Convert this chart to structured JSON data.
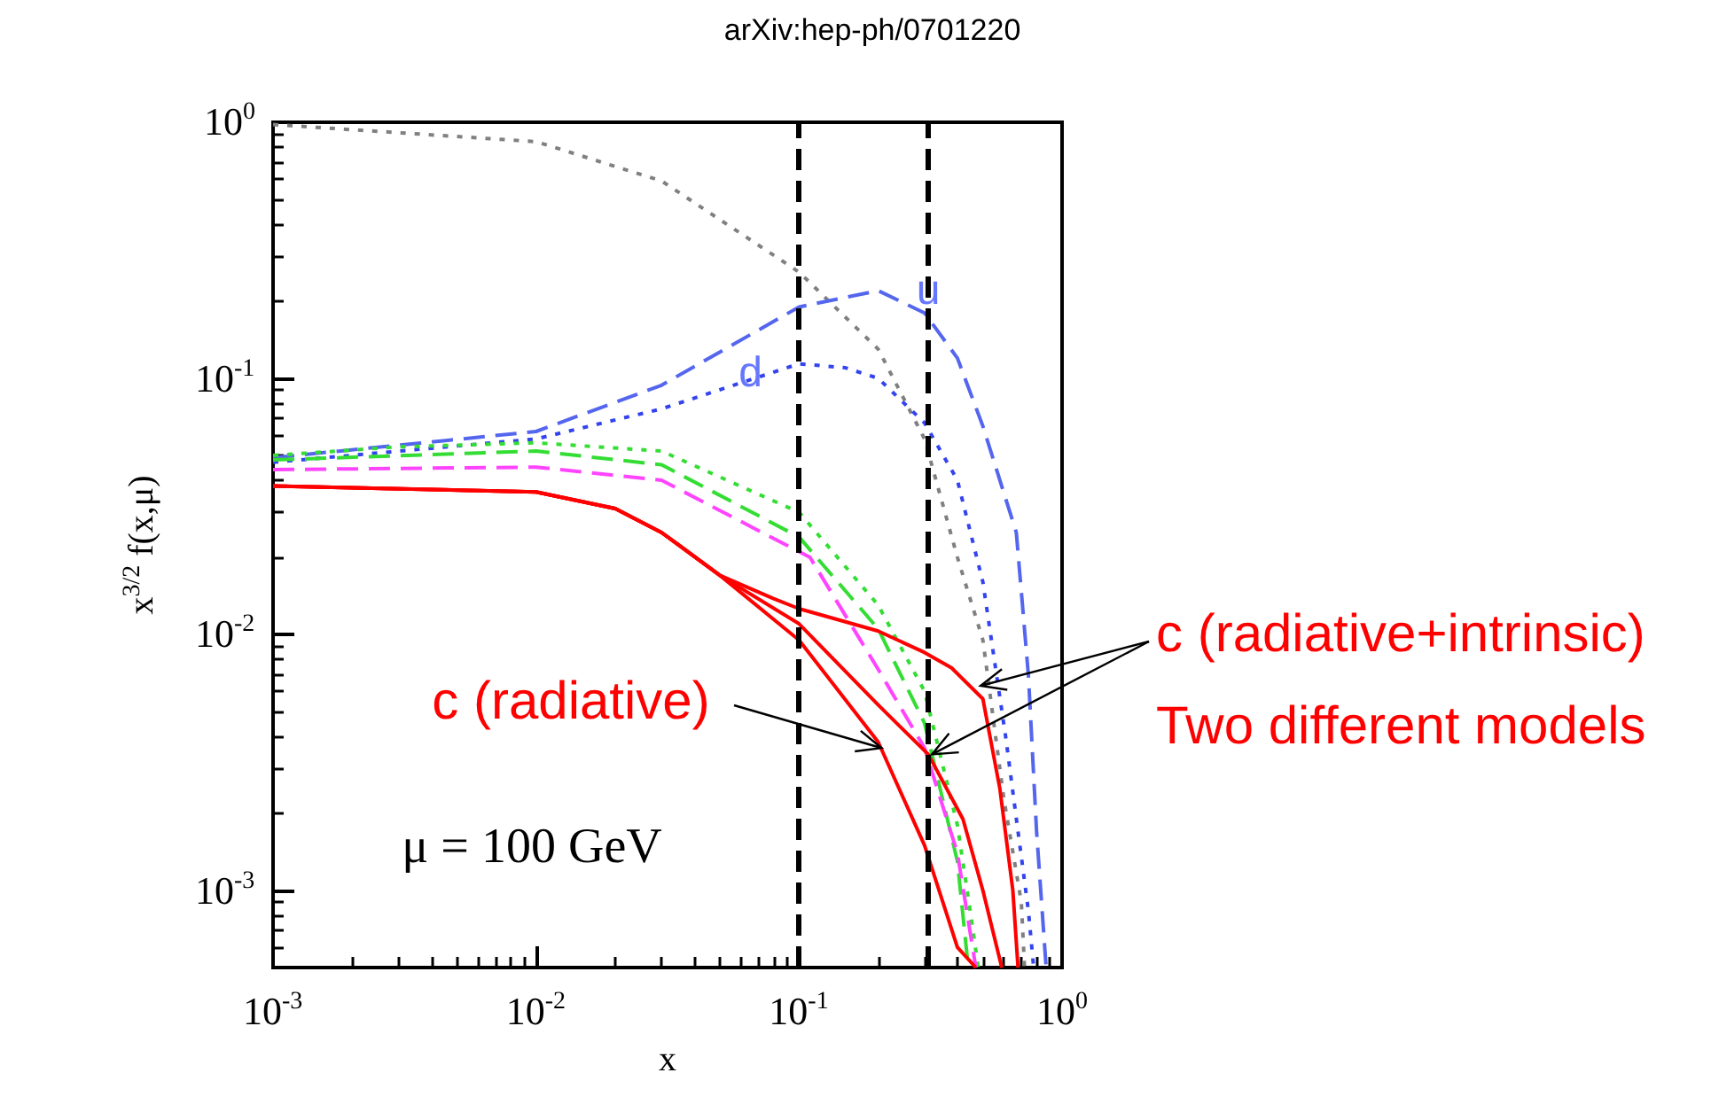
{
  "chart_data": {
    "type": "line",
    "xlabel": "x",
    "ylabel": "x$^{3/2}$ f(x,μ)",
    "log": "xy",
    "grid": false,
    "marker": "none",
    "xlim": [
      0.001,
      1
    ],
    "ylim": [
      0.0005,
      1
    ],
    "xticks": [
      {
        "value": 0.001,
        "label": "10$^{-3}$"
      },
      {
        "value": 0.01,
        "label": "10$^{-2}$"
      },
      {
        "value": 0.1,
        "label": "10$^{-1}$"
      },
      {
        "value": 1,
        "label": "10$^{0}$"
      }
    ],
    "yticks": [
      {
        "value": 0.001,
        "label": "10$^{-3}$"
      },
      {
        "value": 0.01,
        "label": "10$^{-2}$"
      },
      {
        "value": 0.1,
        "label": "10$^{-1}$"
      },
      {
        "value": 1,
        "label": "10$^{0}$"
      }
    ],
    "series": [
      {
        "color": "#808080",
        "line_style": "dotted",
        "x": [
          0.001,
          0.01,
          0.03,
          0.1,
          0.2,
          0.3,
          0.4,
          0.5,
          0.6,
          0.7,
          0.72
        ],
        "values": [
          0.98,
          0.84,
          0.59,
          0.26,
          0.13,
          0.058,
          0.02,
          0.0095,
          0.0023,
          0.0009,
          0.0005
        ]
      },
      {
        "color": "#5566ee",
        "line_style": "dashed",
        "x": [
          0.001,
          0.01,
          0.03,
          0.1,
          0.2,
          0.3,
          0.4,
          0.5,
          0.67,
          0.745,
          0.8,
          0.87
        ],
        "values": [
          0.049,
          0.062,
          0.094,
          0.19,
          0.22,
          0.18,
          0.12,
          0.065,
          0.025,
          0.0069,
          0.0017,
          0.0005
        ]
      },
      {
        "color": "#3344ee",
        "line_style": "dotted",
        "x": [
          0.001,
          0.01,
          0.03,
          0.1,
          0.15,
          0.2,
          0.3,
          0.4,
          0.5,
          0.61,
          0.745,
          0.78
        ],
        "values": [
          0.047,
          0.058,
          0.076,
          0.114,
          0.11,
          0.1,
          0.067,
          0.04,
          0.016,
          0.004,
          0.00083,
          0.0005
        ]
      },
      {
        "color": "#33dd33",
        "line_style": "dotted",
        "x": [
          0.001,
          0.003,
          0.01,
          0.03,
          0.1,
          0.2,
          0.3,
          0.4,
          0.45,
          0.48
        ],
        "values": [
          0.05,
          0.054,
          0.056,
          0.052,
          0.03,
          0.013,
          0.006,
          0.0018,
          0.0008,
          0.0005
        ]
      },
      {
        "color": "#33dd33",
        "line_style": "dashed",
        "x": [
          0.001,
          0.01,
          0.03,
          0.1,
          0.2,
          0.3,
          0.4,
          0.44
        ],
        "values": [
          0.048,
          0.052,
          0.046,
          0.024,
          0.0105,
          0.0045,
          0.0013,
          0.0005
        ]
      },
      {
        "color": "#ff44ff",
        "line_style": "dashed",
        "x": [
          0.001,
          0.01,
          0.03,
          0.11,
          0.2,
          0.3,
          0.4,
          0.47
        ],
        "values": [
          0.044,
          0.045,
          0.04,
          0.02,
          0.0073,
          0.0036,
          0.0014,
          0.0005
        ]
      },
      {
        "color": "#ff0000",
        "line_style": "solid",
        "x": [
          0.001,
          0.01,
          0.02,
          0.03,
          0.05,
          0.1,
          0.2,
          0.3,
          0.4,
          0.47
        ],
        "values": [
          0.038,
          0.036,
          0.031,
          0.025,
          0.017,
          0.0095,
          0.0038,
          0.0015,
          0.0006,
          0.0005
        ]
      },
      {
        "color": "#ff0000",
        "line_style": "solid",
        "x": [
          0.001,
          0.01,
          0.02,
          0.03,
          0.05,
          0.1,
          0.2,
          0.31,
          0.42,
          0.5,
          0.59
        ],
        "values": [
          0.038,
          0.036,
          0.031,
          0.025,
          0.017,
          0.011,
          0.0053,
          0.0034,
          0.0019,
          0.001,
          0.0005
        ]
      },
      {
        "color": "#ff0000",
        "line_style": "solid",
        "x": [
          0.001,
          0.01,
          0.02,
          0.03,
          0.05,
          0.08,
          0.1,
          0.15,
          0.2,
          0.3,
          0.38,
          0.5,
          0.58,
          0.65,
          0.68
        ],
        "values": [
          0.038,
          0.036,
          0.031,
          0.025,
          0.017,
          0.0138,
          0.0126,
          0.0112,
          0.0103,
          0.0085,
          0.0074,
          0.0056,
          0.0025,
          0.001,
          0.0005
        ]
      }
    ],
    "ref_lines": [
      {
        "axis": "x",
        "value": 0.1,
        "color": "#000000",
        "line_style": "dashed"
      },
      {
        "axis": "x",
        "value": 0.31,
        "color": "#000000",
        "line_style": "dashed"
      }
    ],
    "annotations": [
      "arXiv:hep-ph/0701220",
      "μ = 100 GeV",
      {
        "text": "u",
        "x": 0.31,
        "y": 0.22
      },
      {
        "text": "d",
        "x": 0.076,
        "y": 0.105
      },
      {
        "text": "c (radiative)",
        "x": 0.206,
        "y": 0.0036
      },
      {
        "text": "c (radiative+intrinsic)",
        "x": 0.49,
        "y": 0.0063
      },
      {
        "text": "Two different models",
        "x": 0.32,
        "y": 0.0034
      }
    ]
  }
}
